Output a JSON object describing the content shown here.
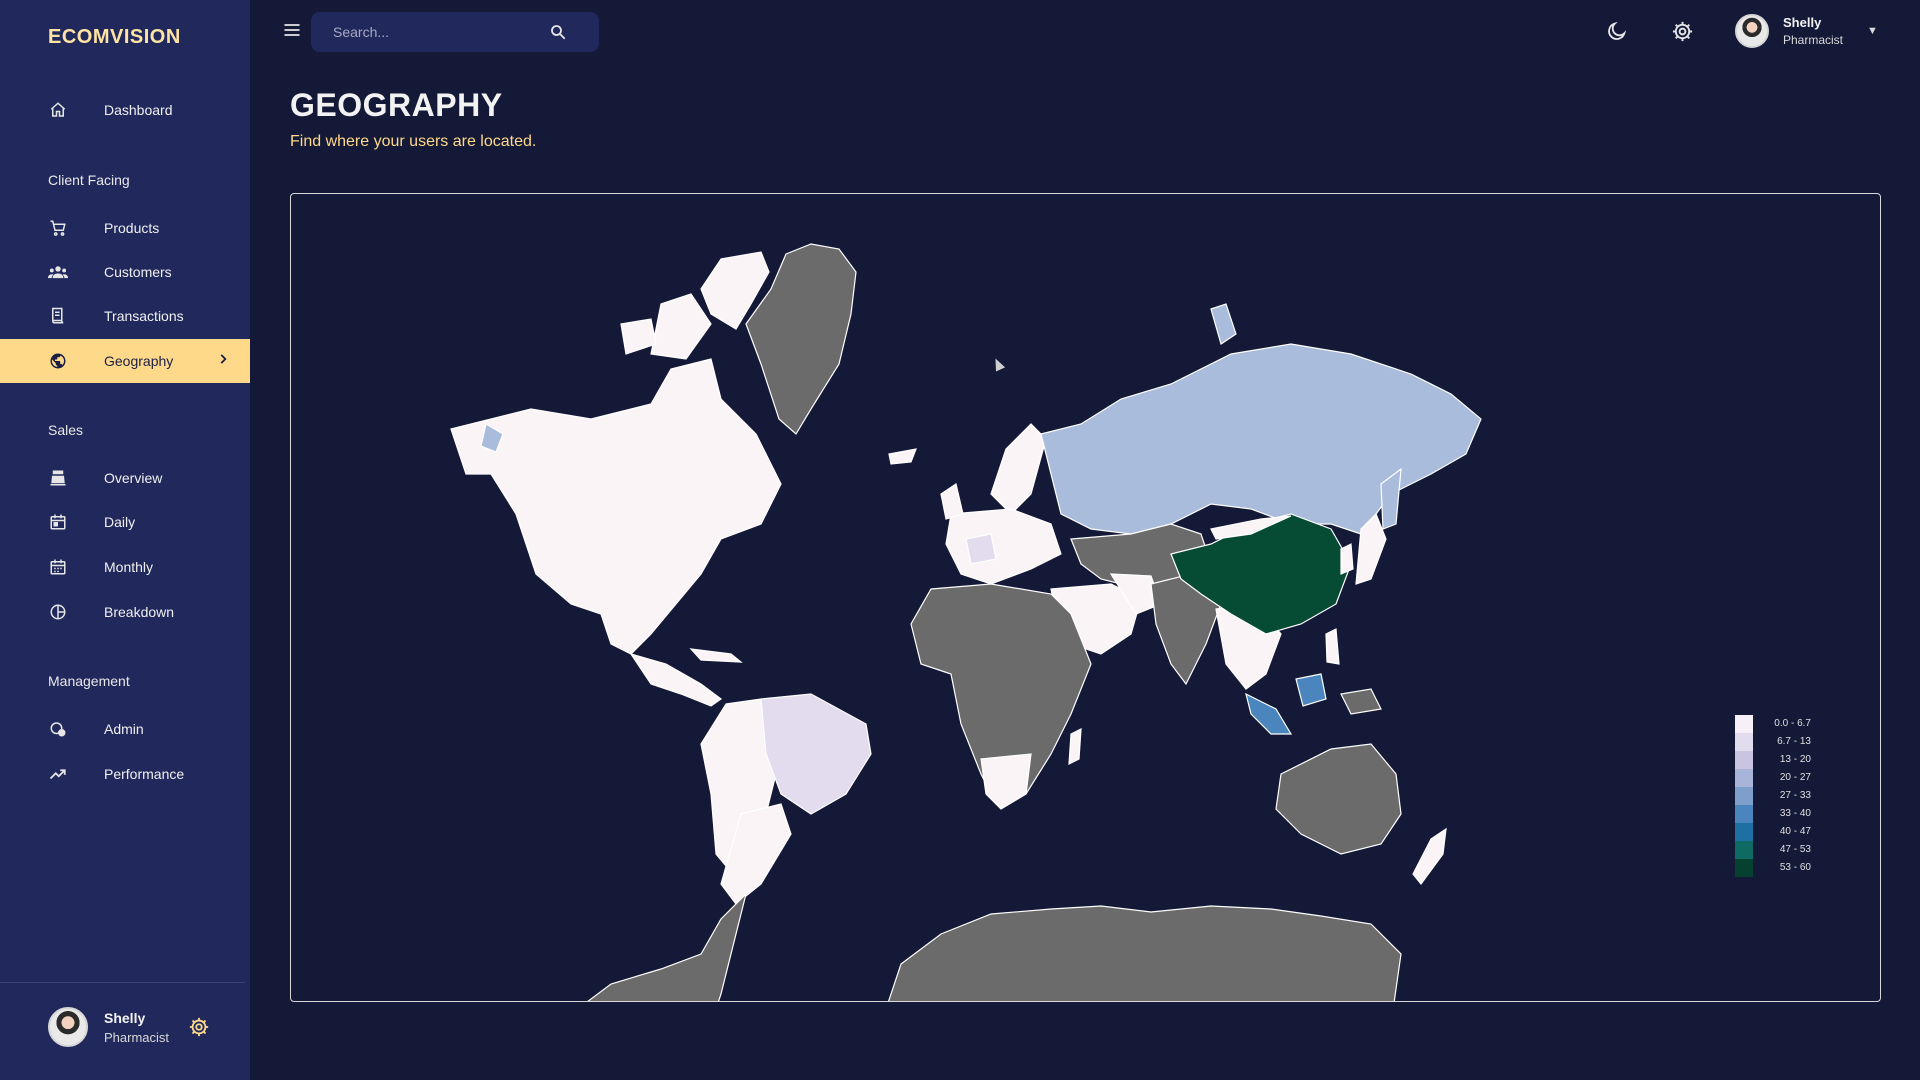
{
  "app": {
    "brand": "ECOMVISION"
  },
  "sidebar": {
    "sections": [
      {
        "label": "Client Facing"
      },
      {
        "label": "Sales"
      },
      {
        "label": "Management"
      }
    ],
    "items": [
      {
        "label": "Dashboard",
        "icon": "home-icon"
      },
      {
        "label": "Products",
        "icon": "shopping-cart-icon"
      },
      {
        "label": "Customers",
        "icon": "groups-icon"
      },
      {
        "label": "Transactions",
        "icon": "receipt-icon"
      },
      {
        "label": "Geography",
        "icon": "globe-icon",
        "active": true
      },
      {
        "label": "Overview",
        "icon": "point-of-sale-icon"
      },
      {
        "label": "Daily",
        "icon": "calendar-day-icon"
      },
      {
        "label": "Monthly",
        "icon": "calendar-month-icon"
      },
      {
        "label": "Breakdown",
        "icon": "pie-chart-icon"
      },
      {
        "label": "Admin",
        "icon": "admin-icon"
      },
      {
        "label": "Performance",
        "icon": "trending-up-icon"
      }
    ],
    "user": {
      "name": "Shelly",
      "role": "Pharmacist"
    }
  },
  "topbar": {
    "search_placeholder": "Search...",
    "user": {
      "name": "Shelly",
      "role": "Pharmacist"
    },
    "icons": [
      "menu-icon",
      "search-icon",
      "dark-mode-icon",
      "settings-icon",
      "arrow-drop-down-icon"
    ]
  },
  "header": {
    "title": "GEOGRAPHY",
    "subtitle": "Find where your users are located."
  },
  "map": {
    "legend": [
      {
        "label": "0.0 - 6.7",
        "color": "#f7f0f8"
      },
      {
        "label": "6.7 - 13",
        "color": "#e2dcee"
      },
      {
        "label": "13 - 20",
        "color": "#c9c4e0"
      },
      {
        "label": "20 - 27",
        "color": "#a9b4d9"
      },
      {
        "label": "27 - 33",
        "color": "#7e9fcc"
      },
      {
        "label": "33 - 40",
        "color": "#4a86bd"
      },
      {
        "label": "40 - 47",
        "color": "#1f6fa3"
      },
      {
        "label": "47 - 53",
        "color": "#0f6a64"
      },
      {
        "label": "53 - 60",
        "color": "#06412f"
      }
    ],
    "colors": {
      "none": "#6b6b6b",
      "low": "#fbf4f7",
      "lavender": "#e2dcee",
      "russia": "#a9bcdb",
      "china": "#064b34",
      "indonesia": "#4a86bd"
    }
  }
}
